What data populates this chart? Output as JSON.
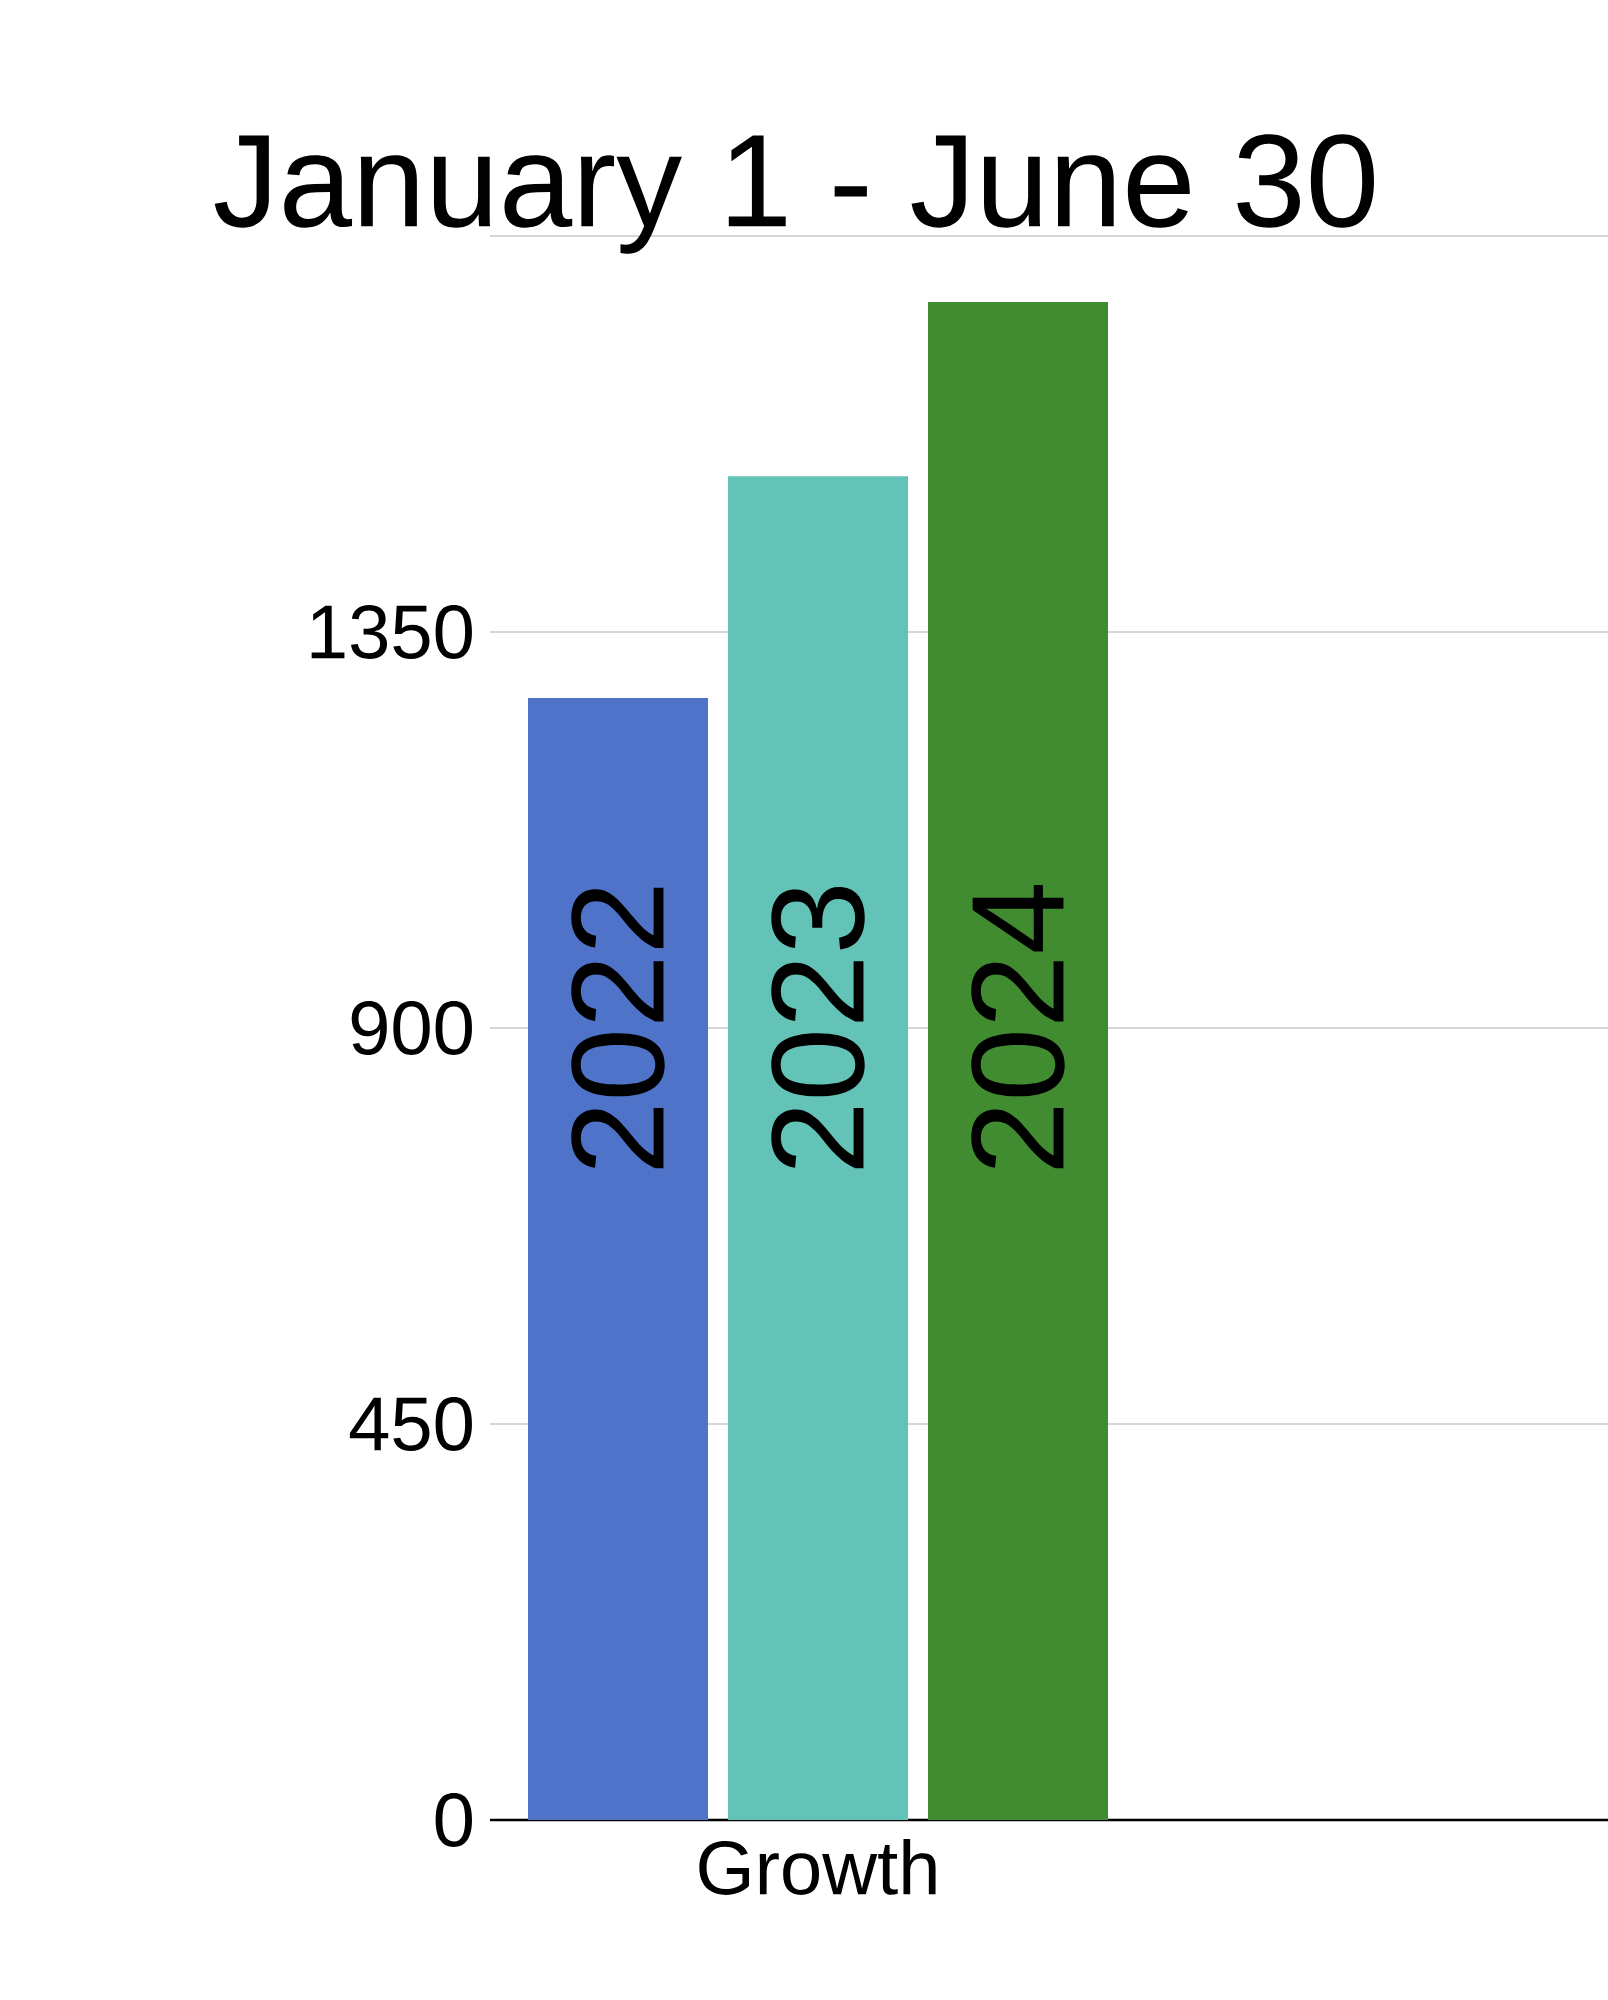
{
  "chart_data": {
    "type": "bar",
    "title": "January 1 - June 30",
    "categories": [
      "Growth"
    ],
    "series": [
      {
        "name": "2022",
        "color": "#4f73c9",
        "values": [
          1275
        ]
      },
      {
        "name": "2023",
        "color": "#63c3b6",
        "values": [
          1527
        ]
      },
      {
        "name": "2024",
        "color": "#418c30",
        "values": [
          1725
        ]
      }
    ],
    "ylim": [
      0,
      1800
    ],
    "yticks": [
      0,
      450,
      900,
      1350,
      {
        "value": 1800,
        "label": null
      }
    ],
    "grid": "y"
  }
}
